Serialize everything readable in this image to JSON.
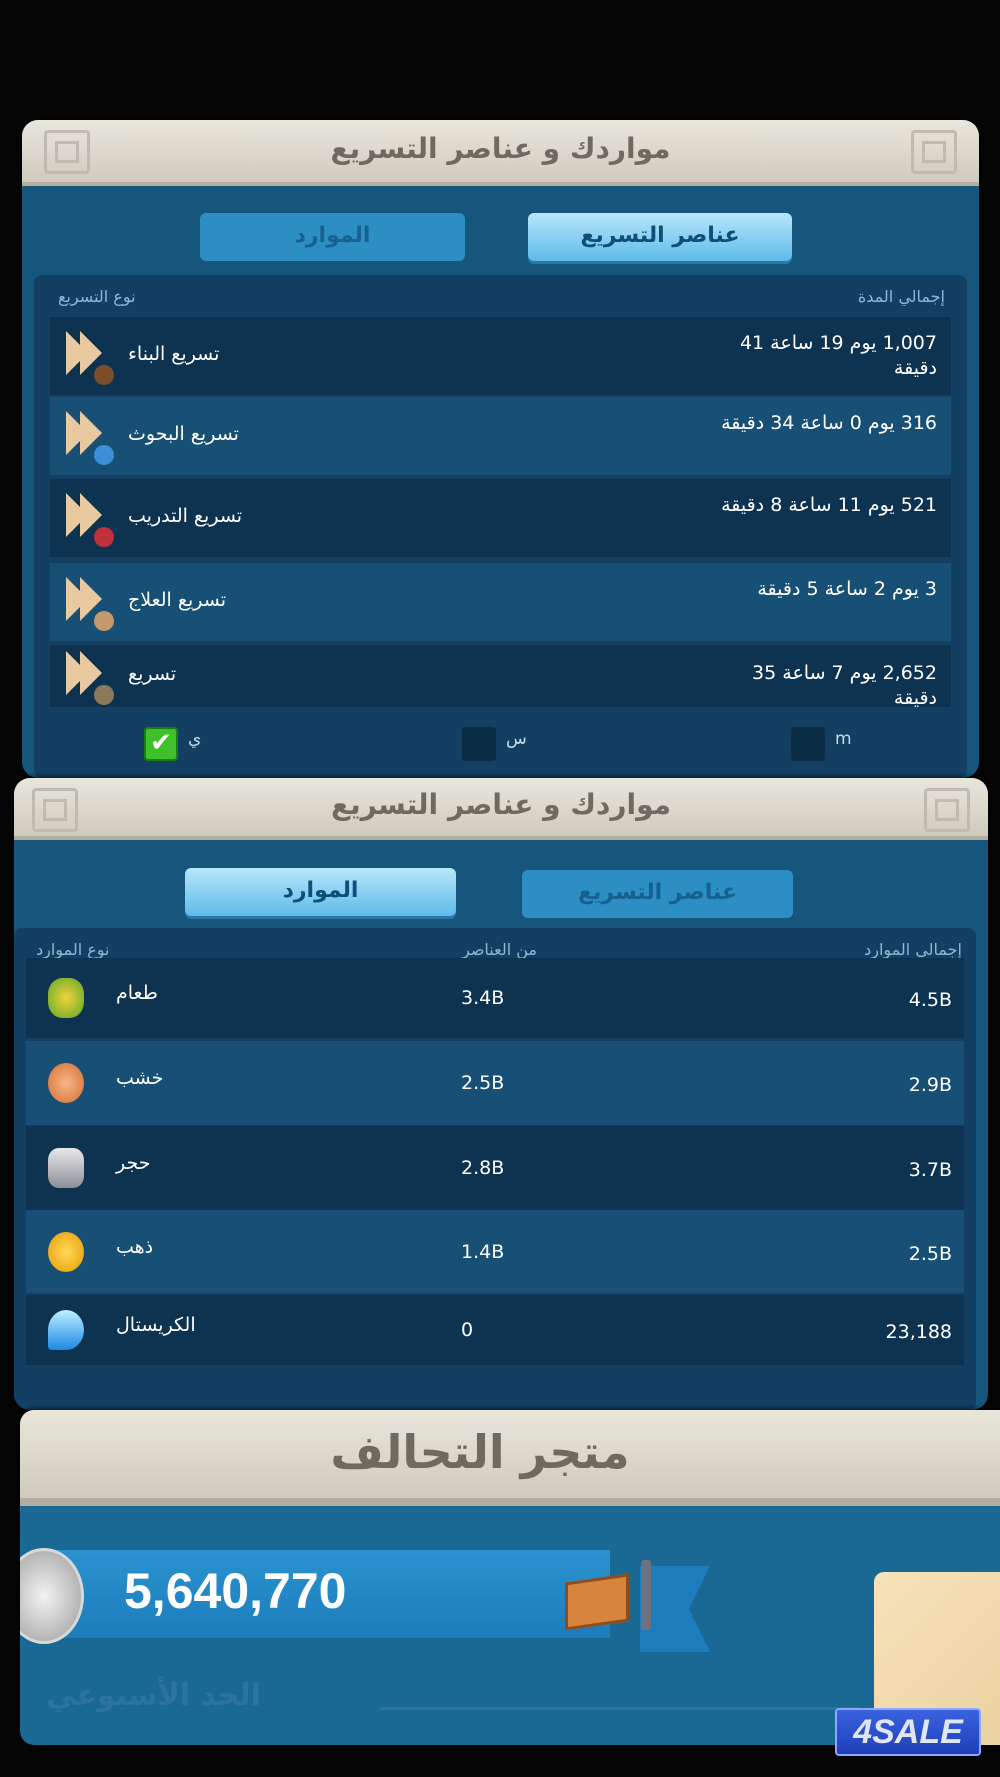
{
  "panel_speedups": {
    "title": "مواردك و عناصر التسريع",
    "tabs": [
      {
        "label": "الموارد",
        "active": false
      },
      {
        "label": "عناصر التسريع",
        "active": true
      }
    ],
    "col_type": "نوع التسريع",
    "col_total": "إجمالي المدة",
    "rows": [
      {
        "name": "تسريع البناء",
        "total": "1,007 يوم 19 ساعة 41 دقيقة",
        "icon": "hammer-speedup-icon"
      },
      {
        "name": "تسريع البحوث",
        "total": "316 يوم 0 ساعة 34 دقيقة",
        "icon": "flask-speedup-icon"
      },
      {
        "name": "تسريع التدريب",
        "total": "521 يوم 11 ساعة 8 دقيقة",
        "icon": "target-speedup-icon"
      },
      {
        "name": "تسريع العلاج",
        "total": "3 يوم 2 ساعة 5 دقيقة",
        "icon": "bandage-speedup-icon"
      },
      {
        "name": "تسريع",
        "total": "2,652 يوم 7 ساعة 35 دقيقة",
        "icon": "hourglass-speedup-icon"
      }
    ],
    "filters": [
      {
        "label": "ي",
        "checked": true
      },
      {
        "label": "س",
        "checked": false
      },
      {
        "label": "m",
        "checked": false
      }
    ]
  },
  "panel_resources": {
    "title": "مواردك و عناصر التسريع",
    "tabs": [
      {
        "label": "الموارد",
        "active": true
      },
      {
        "label": "عناصر التسريع",
        "active": false
      }
    ],
    "col_type": "نوع الموارد",
    "col_items": "من العناصر",
    "col_total": "إجمالي الموارد",
    "rows": [
      {
        "name": "طعام",
        "items": "3.4B",
        "total": "4.5B",
        "icon": "corn-icon"
      },
      {
        "name": "خشب",
        "items": "2.5B",
        "total": "2.9B",
        "icon": "log-icon"
      },
      {
        "name": "حجر",
        "items": "2.8B",
        "total": "3.7B",
        "icon": "stone-icon"
      },
      {
        "name": "ذهب",
        "items": "1.4B",
        "total": "2.5B",
        "icon": "gold-coin-icon"
      },
      {
        "name": "الكريستال",
        "items": "0",
        "total": "23,188",
        "icon": "crystal-icon"
      }
    ]
  },
  "alliance_shop": {
    "title": "متجر التحالف",
    "credits": "5,640,770",
    "weekly_limit_label": "الحد الأسبوعي"
  },
  "watermark": "4SALE"
}
